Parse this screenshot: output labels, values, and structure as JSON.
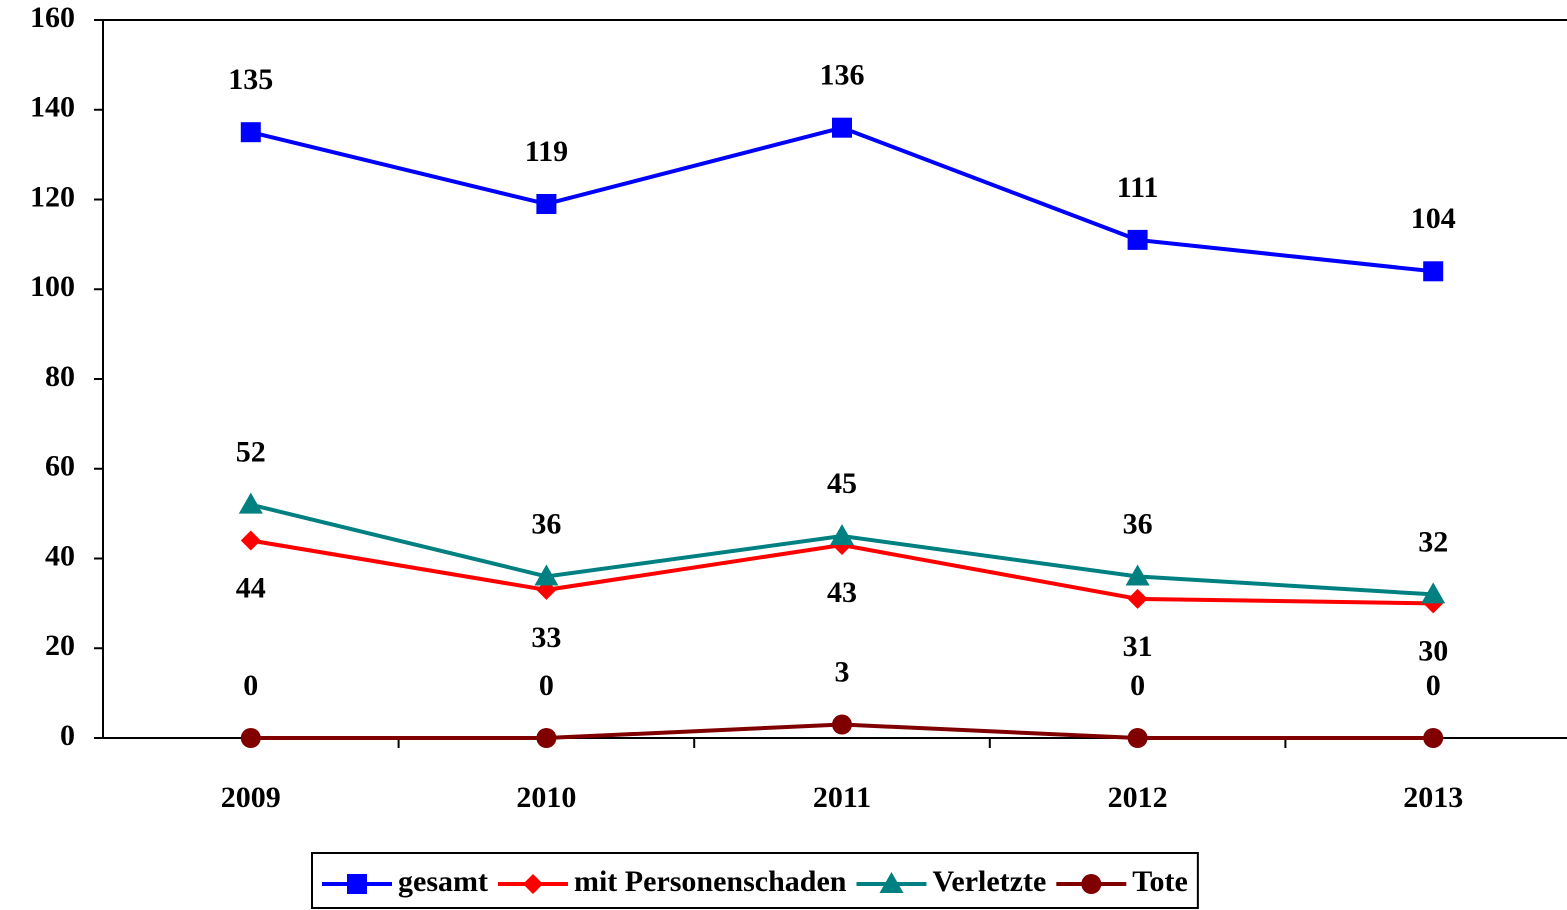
{
  "chart_data": {
    "type": "line",
    "categories": [
      "2009",
      "2010",
      "2011",
      "2012",
      "2013"
    ],
    "series": [
      {
        "name": "gesamt",
        "color": "#0000ff",
        "marker": "square",
        "values": [
          135,
          119,
          136,
          111,
          104
        ]
      },
      {
        "name": "mit Personenschaden",
        "color": "#ff0000",
        "marker": "diamond",
        "values": [
          44,
          33,
          43,
          31,
          30
        ]
      },
      {
        "name": "Verletzte",
        "color": "#008080",
        "marker": "triangle",
        "values": [
          52,
          36,
          45,
          36,
          32
        ]
      },
      {
        "name": "Tote",
        "color": "#800000",
        "marker": "circle",
        "values": [
          0,
          0,
          3,
          0,
          0
        ]
      }
    ],
    "ylim": [
      0,
      160
    ],
    "yticks": [
      0,
      20,
      40,
      60,
      80,
      100,
      120,
      140,
      160
    ],
    "grid": false,
    "legend": "bottom"
  }
}
